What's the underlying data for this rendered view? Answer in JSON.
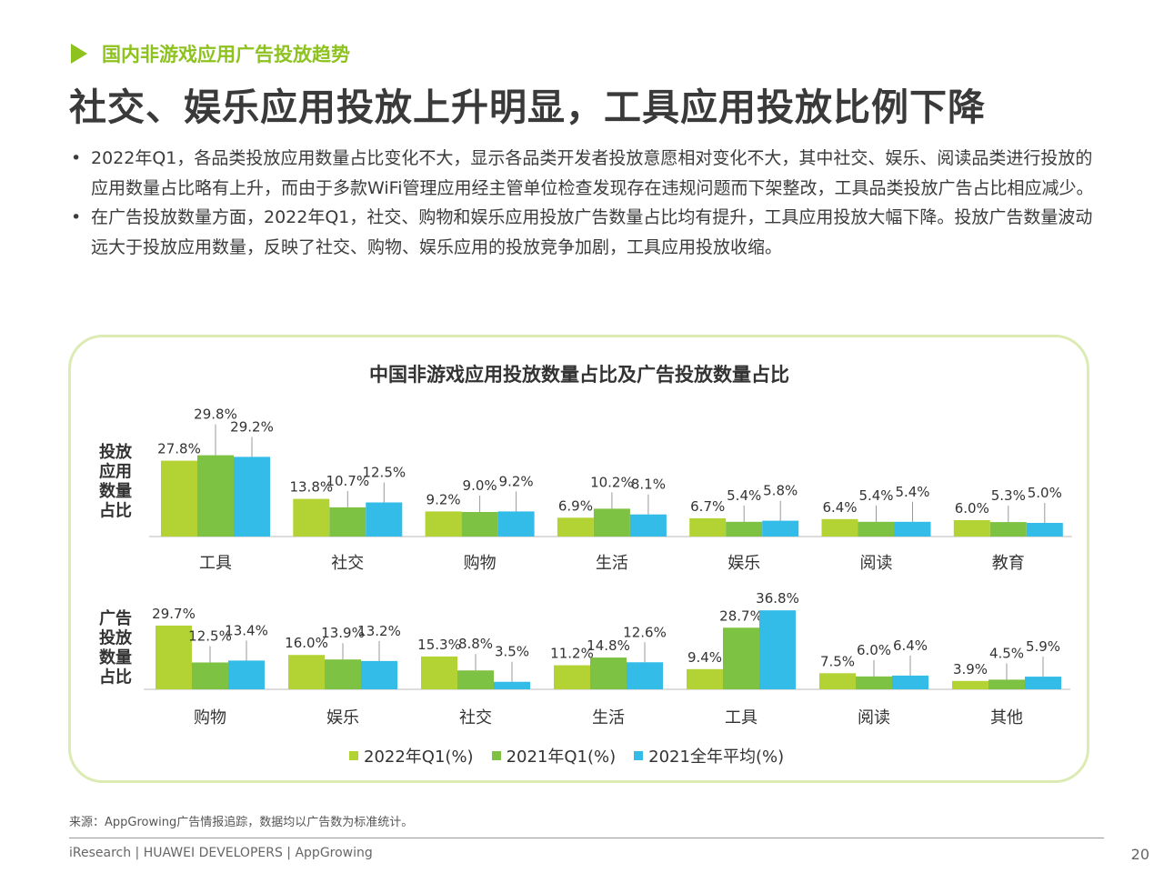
{
  "section_title": "国内非游戏应用广告投放趋势",
  "headline": "社交、娱乐应用投放上升明显，工具应用投放比例下降",
  "bullets": [
    "2022年Q1，各品类投放应用数量占比变化不大，显示各品类开发者投放意愿相对变化不大，其中社交、娱乐、阅读品类进行投放的应用数量占比略有上升，而由于多款WiFi管理应用经主管单位检查发现存在违规问题而下架整改，工具品类投放广告占比相应减少。",
    "在广告投放数量方面，2022年Q1，社交、购物和娱乐应用投放广告数量占比均有提升，工具应用投放大幅下降。投放广告数量波动远大于投放应用数量，反映了社交、购物、娱乐应用的投放竞争加剧，工具应用投放收缩。"
  ],
  "colors": {
    "accent": "#8dc21f",
    "s2022q1": "#b3d334",
    "s2021q1": "#7dc242",
    "s2021avg": "#33bce8"
  },
  "chart_data": {
    "type": "bar",
    "title": "中国非游戏应用投放数量占比及广告投放数量占比",
    "series_names": [
      "2022年Q1(%)",
      "2021年Q1(%)",
      "2021全年平均(%)"
    ],
    "panels": [
      {
        "label": "投放应用数量占比",
        "categories": [
          "工具",
          "社交",
          "购物",
          "生活",
          "娱乐",
          "阅读",
          "教育"
        ],
        "series": [
          {
            "name": "2022年Q1(%)",
            "values": [
              27.8,
              13.8,
              9.2,
              6.9,
              6.7,
              6.4,
              6.0
            ]
          },
          {
            "name": "2021年Q1(%)",
            "values": [
              29.8,
              10.7,
              9.0,
              10.2,
              5.4,
              5.4,
              5.3
            ]
          },
          {
            "name": "2021全年平均(%)",
            "values": [
              29.2,
              12.5,
              9.2,
              8.1,
              5.8,
              5.4,
              5.0
            ]
          }
        ]
      },
      {
        "label": "广告投放数量占比",
        "categories": [
          "购物",
          "娱乐",
          "社交",
          "生活",
          "工具",
          "阅读",
          "其他"
        ],
        "series": [
          {
            "name": "2022年Q1(%)",
            "values": [
              29.7,
              16.0,
              15.3,
              11.2,
              9.4,
              7.5,
              3.9
            ]
          },
          {
            "name": "2021年Q1(%)",
            "values": [
              12.5,
              13.9,
              8.8,
              14.8,
              28.7,
              6.0,
              4.5
            ]
          },
          {
            "name": "2021全年平均(%)",
            "values": [
              13.4,
              13.2,
              3.5,
              12.6,
              36.8,
              6.4,
              5.9
            ]
          }
        ]
      }
    ],
    "legend_position": "bottom",
    "grid": false
  },
  "source": "来源：AppGrowing广告情报追踪，数据均以广告数为标准统计。",
  "footer": "iResearch | HUAWEI DEVELOPERS | AppGrowing",
  "page_number": "20"
}
